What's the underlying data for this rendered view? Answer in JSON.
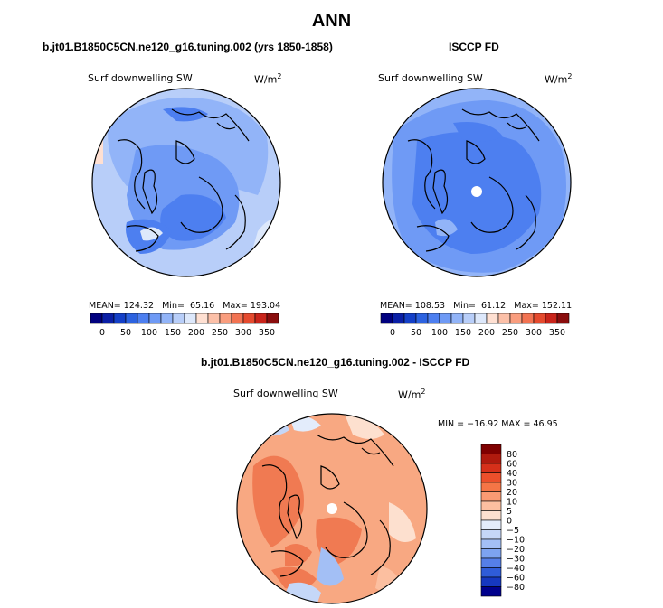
{
  "title": "ANN",
  "panels": [
    {
      "header": "b.jt01.B1850C5CN.ne120_g16.tuning.002 (yrs 1850-1858)",
      "variable": "Surf downwelling SW",
      "units": "W/m",
      "units_exp": "2",
      "stats": {
        "mean_label": "MEAN=",
        "mean": "124.32",
        "min_label": "Min=",
        "min": "65.16",
        "max_label": "Max=",
        "max": "193.04"
      }
    },
    {
      "header": "ISCCP FD",
      "variable": "Surf downwelling SW",
      "units": "W/m",
      "units_exp": "2",
      "stats": {
        "mean_label": "MEAN=",
        "mean": "108.53",
        "min_label": "Min=",
        "min": "61.12",
        "max_label": "Max=",
        "max": "152.11"
      }
    }
  ],
  "horizontal_colorbar": {
    "colors": [
      "#00007f",
      "#0a1fa6",
      "#1440c8",
      "#2c62e0",
      "#4d7ff0",
      "#6f9af5",
      "#92b4f8",
      "#b8cef9",
      "#dde8fb",
      "#ffe0d2",
      "#fcc0a8",
      "#f99d7e",
      "#f27352",
      "#e54a2e",
      "#c9241a",
      "#8a0d0d"
    ],
    "tick_labels": [
      "0",
      "50",
      "100",
      "150",
      "200",
      "250",
      "300",
      "350"
    ]
  },
  "difference": {
    "header": "b.jt01.B1850C5CN.ne120_g16.tuning.002 - ISCCP FD",
    "variable": "Surf downwelling SW",
    "units": "W/m",
    "units_exp": "2",
    "min_max": "MIN = −16.92  MAX =  46.95",
    "colorbar": {
      "colors": [
        "#7f0000",
        "#b01a0e",
        "#d6301a",
        "#ec4f2b",
        "#f57546",
        "#fa9a73",
        "#fcbfa0",
        "#fde0cf",
        "#e3ecfb",
        "#c5d7f8",
        "#a3bff5",
        "#7da3f0",
        "#557fe8",
        "#2f5cd8",
        "#1638c0",
        "#00008c"
      ],
      "tick_labels": [
        "80",
        "60",
        "40",
        "30",
        "20",
        "10",
        "5",
        "0",
        "−5",
        "−10",
        "−20",
        "−30",
        "−40",
        "−60",
        "−80"
      ]
    }
  },
  "colors": {
    "ocean_blue_light": "#aac4f4",
    "blue_mid": "#6f9af5",
    "blue_dark": "#4d7ff0",
    "diff_orange": "#f8a882",
    "diff_red": "#f07a52"
  }
}
